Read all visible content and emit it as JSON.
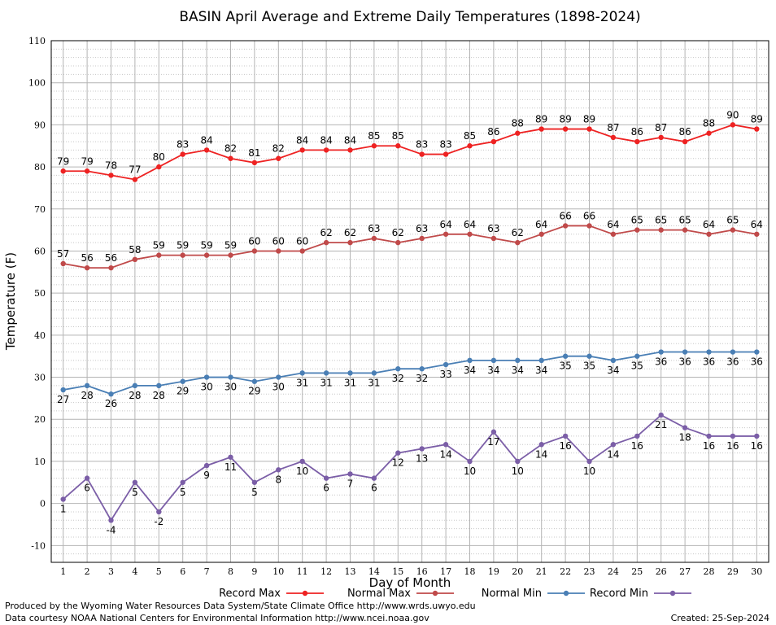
{
  "chart_data": {
    "type": "line",
    "title": "BASIN April Average and Extreme Daily Temperatures (1898-2024)",
    "xlabel": "Day of Month",
    "ylabel": "Temperature (F)",
    "ylim": [
      -14,
      110
    ],
    "xlim": [
      0.5,
      30.5
    ],
    "y_ticks": [
      -10,
      0,
      10,
      20,
      30,
      40,
      50,
      60,
      70,
      80,
      90,
      100,
      110
    ],
    "x": [
      1,
      2,
      3,
      4,
      5,
      6,
      7,
      8,
      9,
      10,
      11,
      12,
      13,
      14,
      15,
      16,
      17,
      18,
      19,
      20,
      21,
      22,
      23,
      24,
      25,
      26,
      27,
      28,
      29,
      30
    ],
    "grid": true,
    "legend_position": "bottom",
    "series": [
      {
        "name": "Record Max",
        "color": "#ee2222",
        "label_position": "above",
        "values": [
          79,
          79,
          78,
          77,
          80,
          83,
          84,
          82,
          81,
          82,
          84,
          84,
          84,
          85,
          85,
          83,
          83,
          85,
          86,
          88,
          89,
          89,
          89,
          87,
          86,
          87,
          86,
          88,
          90,
          89
        ]
      },
      {
        "name": "Normal Max",
        "color": "#c04a4a",
        "label_position": "above",
        "values": [
          57,
          56,
          56,
          58,
          59,
          59,
          59,
          59,
          60,
          60,
          60,
          62,
          62,
          63,
          62,
          63,
          64,
          64,
          63,
          62,
          64,
          66,
          66,
          64,
          65,
          65,
          65,
          64,
          65,
          64
        ]
      },
      {
        "name": "Normal Min",
        "color": "#4a7fb5",
        "label_position": "below",
        "values": [
          27,
          28,
          26,
          28,
          28,
          29,
          30,
          30,
          29,
          30,
          31,
          31,
          31,
          31,
          32,
          32,
          33,
          34,
          34,
          34,
          34,
          35,
          35,
          34,
          35,
          36,
          36,
          36,
          36,
          36
        ]
      },
      {
        "name": "Record Min",
        "color": "#7b5ea7",
        "label_position": "below",
        "values": [
          1,
          6,
          -4,
          5,
          -2,
          5,
          9,
          11,
          5,
          8,
          10,
          6,
          7,
          6,
          12,
          13,
          14,
          10,
          17,
          10,
          14,
          16,
          10,
          14,
          16,
          21,
          18,
          16,
          16,
          16
        ]
      }
    ]
  },
  "footer": {
    "line1": "Produced by the Wyoming Water Resources Data System/State Climate Office http://www.wrds.uwyo.edu",
    "line2": "Data courtesy NOAA National Centers for Environmental Information http://www.ncei.noaa.gov",
    "created": "Created:  25-Sep-2024"
  }
}
